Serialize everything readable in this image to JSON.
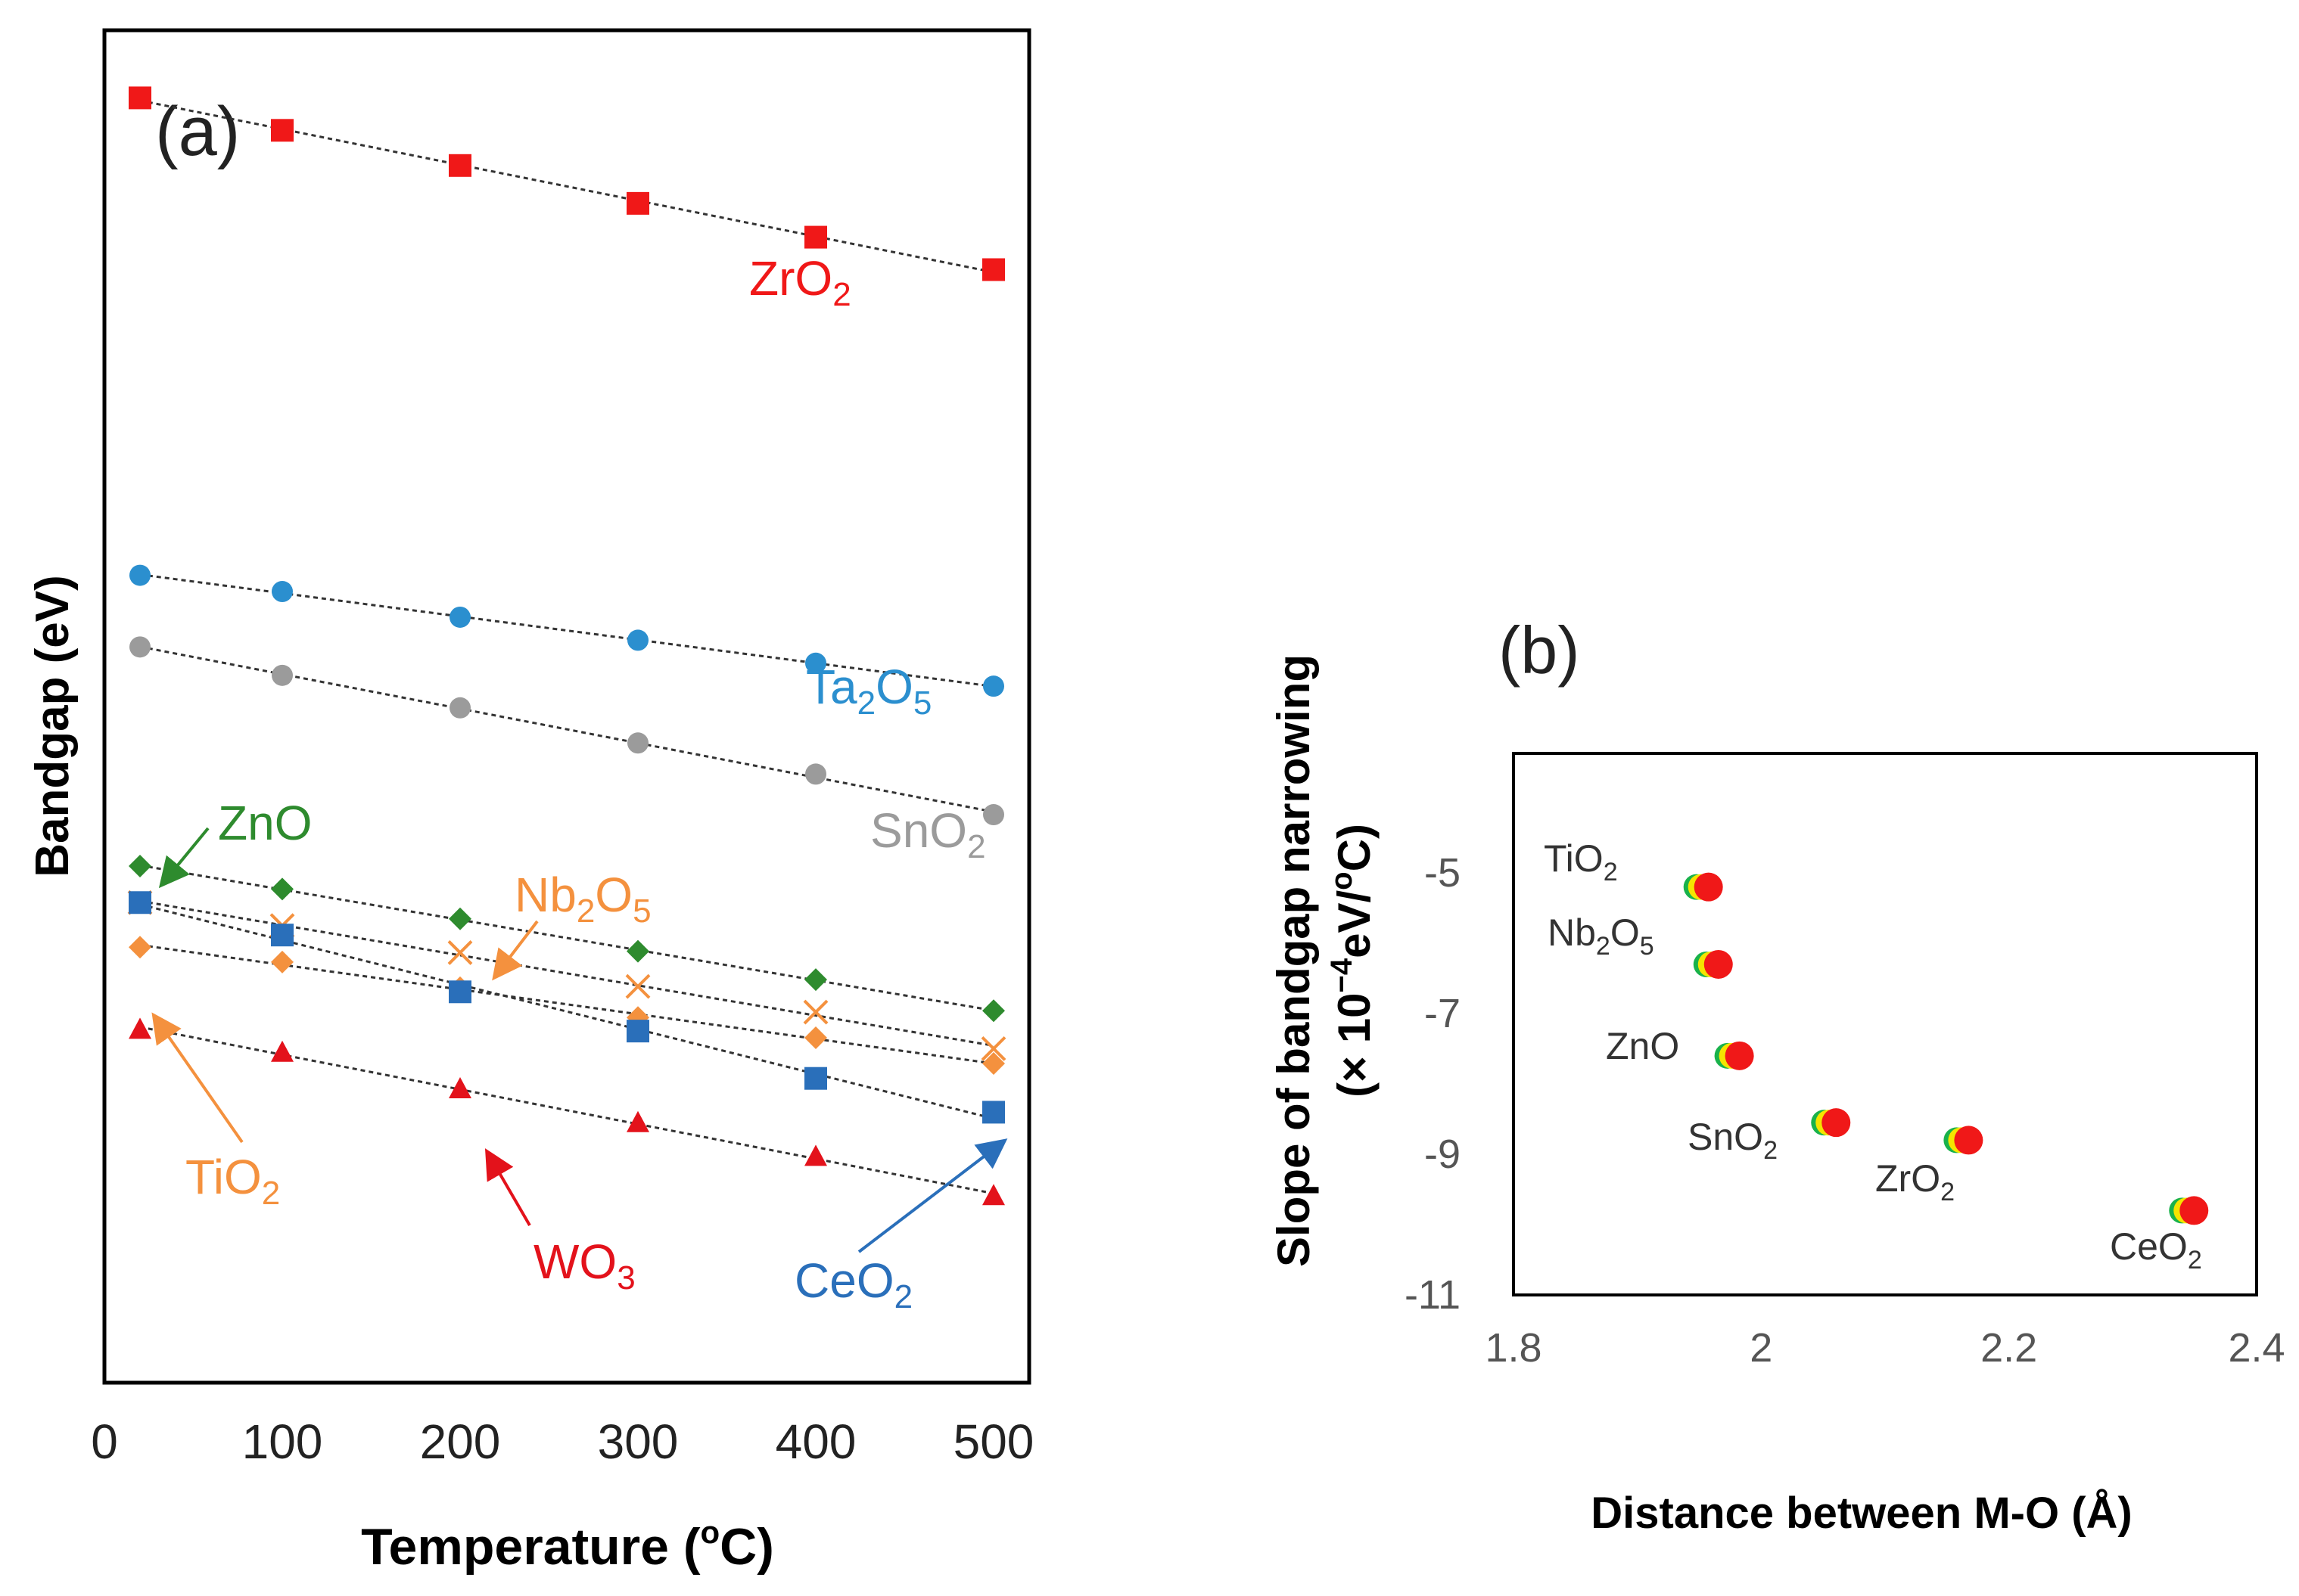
{
  "chart_data": [
    {
      "panel": "(a)",
      "type": "scatter",
      "xlabel": "Temperature",
      "xlabel_unit_pre": "(",
      "xlabel_unit_sup": "o",
      "xlabel_unit_post": "C)",
      "ylabel": "Bandgap (eV)",
      "xlim": [
        0,
        520
      ],
      "ylim": [
        0,
        100
      ],
      "x_ticks": [
        "0",
        "100",
        "200",
        "300",
        "400",
        "500"
      ],
      "x_tick_values": [
        0,
        100,
        200,
        300,
        400,
        500
      ],
      "y_ticks_shown": false,
      "grid": false,
      "trendlines": "dotted",
      "series": [
        {
          "name": "ZrO2",
          "label_main": "ZrO",
          "label_sub": "2",
          "color": "#f01818",
          "marker": "square",
          "x": [
            20,
            100,
            200,
            300,
            400,
            500
          ],
          "y": [
            95.0,
            92.6,
            90.0,
            87.2,
            84.7,
            82.3
          ]
        },
        {
          "name": "Ta2O5",
          "label_parts": [
            "Ta",
            "2",
            "O",
            "5"
          ],
          "color": "#2b8fcf",
          "marker": "circle",
          "x": [
            20,
            100,
            200,
            300,
            400,
            500
          ],
          "y": [
            59.7,
            58.5,
            56.6,
            54.9,
            53.2,
            51.5
          ]
        },
        {
          "name": "SnO2",
          "label_main": "SnO",
          "label_sub": "2",
          "color": "#9b9b9b",
          "marker": "circle",
          "x": [
            20,
            100,
            200,
            300,
            400,
            500
          ],
          "y": [
            54.4,
            52.3,
            49.9,
            47.3,
            45.0,
            42.0
          ]
        },
        {
          "name": "ZnO",
          "label_main": "ZnO",
          "label_sub": "",
          "color": "#2e8b2e",
          "marker": "diamond",
          "x": [
            20,
            100,
            200,
            300,
            400,
            500
          ],
          "y": [
            38.2,
            36.5,
            34.3,
            31.9,
            29.8,
            27.5
          ]
        },
        {
          "name": "Nb2O5",
          "label_parts": [
            "Nb",
            "2",
            "O",
            "5"
          ],
          "color": "#f4913e",
          "marker": "x",
          "x": [
            20,
            100,
            200,
            300,
            400,
            500
          ],
          "y": [
            35.5,
            33.8,
            31.8,
            29.3,
            27.4,
            24.7
          ]
        },
        {
          "name": "TiO2",
          "label_main": "TiO",
          "label_sub": "2",
          "color": "#f4913e",
          "marker": "diamond",
          "x": [
            20,
            100,
            200,
            300,
            400,
            500
          ],
          "y": [
            32.2,
            31.1,
            29.2,
            27.0,
            25.5,
            23.6
          ]
        },
        {
          "name": "CeO2",
          "label_main": "CeO",
          "label_sub": "2",
          "color": "#2a6fba",
          "marker": "square",
          "x": [
            20,
            100,
            200,
            300,
            400,
            500
          ],
          "y": [
            35.5,
            33.1,
            28.9,
            26.0,
            22.5,
            20.0
          ]
        },
        {
          "name": "WO3",
          "label_main": "WO",
          "label_sub": "3",
          "color": "#e3121b",
          "marker": "triangle",
          "x": [
            20,
            100,
            200,
            300,
            400,
            500
          ],
          "y": [
            26.1,
            24.4,
            21.7,
            19.2,
            16.7,
            13.8
          ]
        }
      ]
    },
    {
      "panel": "(b)",
      "type": "scatter",
      "xlabel": "Distance between M-O (Å)",
      "ylabel_line1": "Slope of bandgap narrowing",
      "ylabel_line2_pre": "(× 10",
      "ylabel_line2_sup": "−4",
      "ylabel_line2_mid": "eV/",
      "ylabel_line2_sup2": "o",
      "ylabel_line2_post": "C)",
      "xlim": [
        1.8,
        2.4
      ],
      "ylim": [
        -11,
        -3.3
      ],
      "x_ticks": [
        "1.8",
        "2",
        "2.2",
        "2.4"
      ],
      "x_tick_values": [
        1.8,
        2.0,
        2.2,
        2.4
      ],
      "y_ticks": [
        "-5",
        "-7",
        "-9",
        "-11"
      ],
      "y_tick_values": [
        -5,
        -7,
        -9,
        -11
      ],
      "grid": false,
      "marker_colors": [
        "#19b24b",
        "#f5e400",
        "#f01818"
      ],
      "points": [
        {
          "name": "TiO2",
          "label_main": "TiO",
          "label_sub": "2",
          "x": 1.955,
          "y": -5.2
        },
        {
          "name": "Nb2O5",
          "label_parts": [
            "Nb",
            "2",
            "O",
            "5"
          ],
          "x": 1.963,
          "y": -6.3
        },
        {
          "name": "ZnO",
          "label_main": "ZnO",
          "label_sub": "",
          "x": 1.98,
          "y": -7.6
        },
        {
          "name": "SnO2",
          "label_main": "SnO",
          "label_sub": "2",
          "x": 2.058,
          "y": -8.55
        },
        {
          "name": "ZrO2",
          "label_main": "ZrO",
          "label_sub": "2",
          "x": 2.165,
          "y": -8.8
        },
        {
          "name": "CeO2",
          "label_main": "CeO",
          "label_sub": "2",
          "x": 2.347,
          "y": -9.8
        }
      ]
    }
  ]
}
